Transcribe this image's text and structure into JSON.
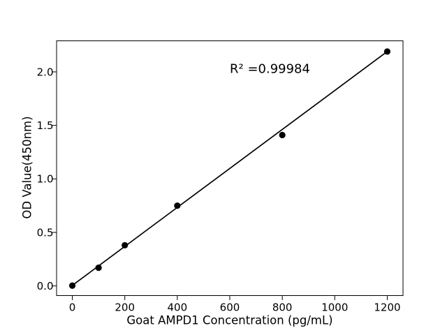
{
  "figure": {
    "background": "#ffffff"
  },
  "chart_data": {
    "type": "scatter",
    "title": "",
    "xlabel": "Goat AMPD1 Concentration (pg/mL)",
    "ylabel": "OD Value(450nm)",
    "points": {
      "x": [
        0,
        100,
        200,
        400,
        800,
        1200
      ],
      "y": [
        0.003,
        0.17,
        0.38,
        0.75,
        1.41,
        2.19
      ]
    },
    "trendline": {
      "x": [
        0,
        1200
      ],
      "y": [
        0.005,
        2.19
      ]
    },
    "annotation": {
      "text": "R² =0.99984",
      "x": 600,
      "y": 1.99
    },
    "xticks": [
      0,
      200,
      400,
      600,
      800,
      1000,
      1200
    ],
    "xtick_labels": [
      "0",
      "200",
      "400",
      "600",
      "800",
      "1000",
      "1200"
    ],
    "yticks": [
      0,
      0.5,
      1.0,
      1.5,
      2.0
    ],
    "ytick_labels": [
      "0.0",
      "0.5",
      "1.0",
      "1.5",
      "2.0"
    ],
    "xlim": [
      -60,
      1260
    ],
    "ylim": [
      -0.09,
      2.29
    ],
    "grid": false,
    "legend": false,
    "colors": {
      "marker": "#000000",
      "line": "#000000",
      "axis": "#000000",
      "text": "#000000"
    }
  }
}
